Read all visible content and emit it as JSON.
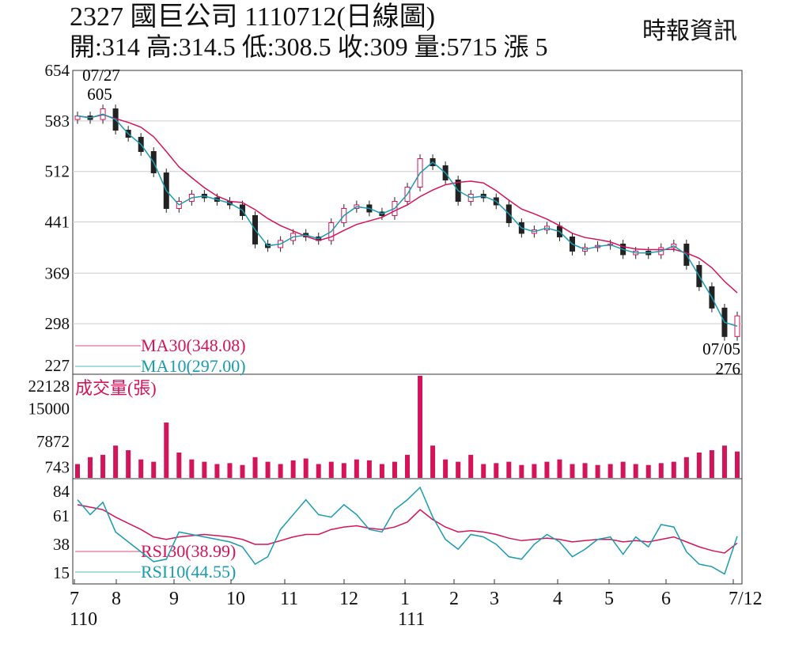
{
  "header": {
    "title": "2327  國巨公司 1110712(日線圖)",
    "ohlc": "開:314 高:314.5 低:308.5 收:309 量:5715 漲 5",
    "source": "時報資訊"
  },
  "chart_data": [
    {
      "type": "candlestick",
      "panel": "price",
      "yticks": [
        654,
        583,
        512,
        441,
        369,
        298,
        227
      ],
      "ylim": [
        227,
        654
      ],
      "close": [
        590,
        585,
        600,
        570,
        560,
        540,
        510,
        460,
        470,
        480,
        475,
        470,
        465,
        450,
        410,
        405,
        415,
        425,
        420,
        415,
        440,
        460,
        465,
        455,
        450,
        470,
        490,
        530,
        520,
        500,
        470,
        480,
        475,
        465,
        440,
        425,
        430,
        435,
        420,
        400,
        405,
        408,
        410,
        395,
        400,
        395,
        405,
        410,
        380,
        350,
        320,
        280,
        309
      ],
      "annotations": [
        {
          "date": "07/27",
          "value": "605"
        },
        {
          "date": "07/05",
          "value": "276"
        }
      ],
      "legend": [
        {
          "label": "MA30(348.08)",
          "color": "#d4145a"
        },
        {
          "label": "MA10(297.00)",
          "color": "#1a9bb0"
        }
      ]
    },
    {
      "type": "bar",
      "panel": "volume",
      "title": "成交量(張)",
      "yticks": [
        22128,
        15000,
        7872,
        743
      ],
      "ylim": [
        0,
        22128
      ],
      "values": [
        3000,
        4500,
        5000,
        7000,
        6000,
        4000,
        3500,
        12000,
        5500,
        4000,
        3500,
        3000,
        3200,
        2800,
        4500,
        3500,
        3000,
        3800,
        4200,
        3000,
        3500,
        3200,
        4000,
        3800,
        3000,
        3500,
        5000,
        22128,
        7000,
        4000,
        3500,
        5000,
        3000,
        3200,
        3500,
        2800,
        3000,
        3500,
        4000,
        3000,
        3200,
        2800,
        3000,
        3500,
        3000,
        2800,
        3200,
        3500,
        4500,
        5500,
        6000,
        7000,
        5715
      ],
      "color": "#d4145a"
    },
    {
      "type": "line",
      "panel": "rsi",
      "yticks": [
        84,
        61,
        38,
        15
      ],
      "ylim": [
        5,
        92
      ],
      "series": [
        {
          "name": "RSI30(38.99)",
          "color": "#d4145a",
          "values": [
            70,
            68,
            66,
            60,
            55,
            50,
            44,
            42,
            44,
            45,
            46,
            45,
            44,
            42,
            38,
            38,
            41,
            44,
            46,
            46,
            50,
            52,
            53,
            51,
            50,
            52,
            56,
            66,
            58,
            52,
            48,
            49,
            48,
            46,
            43,
            41,
            42,
            43,
            42,
            40,
            41,
            42,
            42,
            40,
            41,
            40,
            42,
            44,
            40,
            36,
            33,
            31,
            38.99
          ]
        },
        {
          "name": "RSI10(44.55)",
          "color": "#1a9bb0",
          "values": [
            74,
            62,
            72,
            48,
            40,
            32,
            24,
            26,
            48,
            46,
            44,
            42,
            40,
            36,
            22,
            28,
            50,
            62,
            74,
            62,
            60,
            70,
            62,
            50,
            48,
            66,
            74,
            84,
            60,
            42,
            34,
            46,
            44,
            38,
            28,
            26,
            38,
            46,
            40,
            28,
            34,
            42,
            44,
            30,
            44,
            36,
            54,
            52,
            32,
            22,
            20,
            14,
            44.55
          ]
        }
      ]
    },
    {
      "type": "axis",
      "xticks": [
        "7",
        "8",
        "9",
        "10",
        "11",
        "12",
        "1",
        "2",
        "3",
        "4",
        "5",
        "6",
        "7/12"
      ],
      "year_labels": [
        "110",
        "111"
      ]
    }
  ]
}
